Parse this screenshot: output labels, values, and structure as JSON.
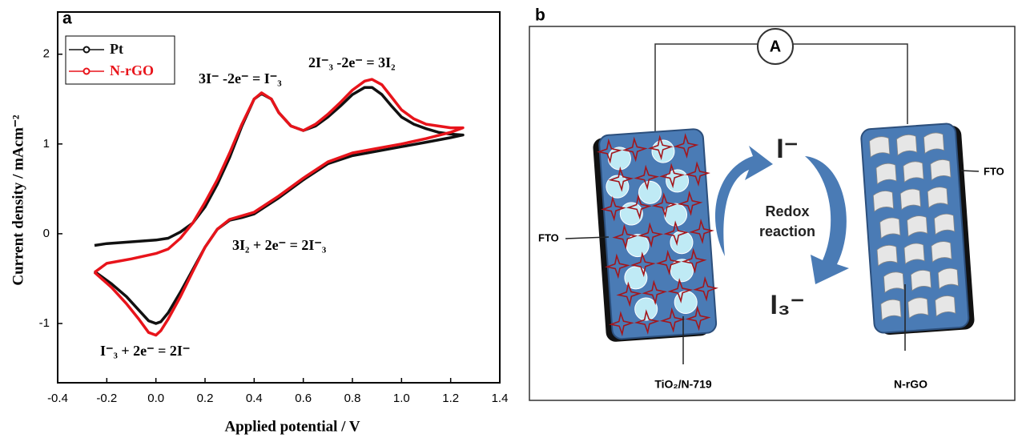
{
  "chart_data": {
    "type": "line",
    "panel_label": "a",
    "xlabel": "Applied potential / V",
    "ylabel": "Current density / mAcm⁻²",
    "xlim": [
      -0.4,
      1.4
    ],
    "ylim": [
      -1.66,
      2.47
    ],
    "xticks": [
      -0.4,
      -0.2,
      {
        "value": 0,
        "label": "0.0"
      },
      0.2,
      0.4,
      0.6,
      0.8,
      {
        "value": 1,
        "label": "1.0"
      },
      1.2,
      1.4
    ],
    "yticks": [
      -1,
      0,
      1,
      2
    ],
    "legend": "upper left",
    "annotations": [
      "3I⁻ -2e⁻ = I⁻₃",
      "2I⁻₃ -2e⁻ = 3I₂",
      "3I₂ + 2e⁻ = 2I⁻₃",
      "I⁻₃ + 2e⁻ = 2I⁻"
    ],
    "series": [
      {
        "name": "Pt",
        "color": "#111111",
        "x": [
          -0.25,
          -0.2,
          -0.1,
          0,
          0.05,
          0.1,
          0.15,
          0.2,
          0.25,
          0.3,
          0.35,
          0.4,
          0.43,
          0.47,
          0.5,
          0.55,
          0.6,
          0.65,
          0.7,
          0.75,
          0.8,
          0.85,
          0.88,
          0.92,
          0.96,
          1.0,
          1.05,
          1.1,
          1.15,
          1.2,
          1.25,
          1.2,
          1.1,
          1.0,
          0.9,
          0.8,
          0.7,
          0.6,
          0.5,
          0.4,
          0.35,
          0.3,
          0.25,
          0.2,
          0.15,
          0.1,
          0.05,
          0.02,
          0,
          -0.03,
          -0.07,
          -0.12,
          -0.18,
          -0.25
        ],
        "values": [
          -0.13,
          -0.11,
          -0.09,
          -0.07,
          -0.05,
          0.02,
          0.12,
          0.3,
          0.55,
          0.85,
          1.2,
          1.5,
          1.56,
          1.5,
          1.35,
          1.2,
          1.15,
          1.2,
          1.3,
          1.42,
          1.55,
          1.63,
          1.63,
          1.55,
          1.42,
          1.3,
          1.22,
          1.17,
          1.13,
          1.11,
          1.1,
          1.07,
          1.02,
          0.97,
          0.92,
          0.87,
          0.78,
          0.6,
          0.4,
          0.22,
          0.18,
          0.15,
          0.05,
          -0.15,
          -0.4,
          -0.65,
          -0.88,
          -0.98,
          -1.0,
          -0.97,
          -0.85,
          -0.7,
          -0.56,
          -0.42
        ]
      },
      {
        "name": "N-rGO",
        "color": "#e8141b",
        "x": [
          -0.25,
          -0.2,
          -0.1,
          0,
          0.05,
          0.1,
          0.15,
          0.2,
          0.25,
          0.3,
          0.35,
          0.4,
          0.43,
          0.47,
          0.5,
          0.55,
          0.6,
          0.65,
          0.7,
          0.75,
          0.8,
          0.85,
          0.88,
          0.92,
          0.96,
          1.0,
          1.05,
          1.1,
          1.15,
          1.2,
          1.25,
          1.2,
          1.1,
          1.0,
          0.9,
          0.8,
          0.7,
          0.6,
          0.5,
          0.4,
          0.35,
          0.3,
          0.25,
          0.2,
          0.15,
          0.1,
          0.05,
          0.02,
          0,
          -0.03,
          -0.07,
          -0.12,
          -0.18,
          -0.25
        ],
        "values": [
          -0.43,
          -0.33,
          -0.28,
          -0.22,
          -0.17,
          -0.05,
          0.12,
          0.35,
          0.6,
          0.9,
          1.22,
          1.5,
          1.57,
          1.5,
          1.35,
          1.2,
          1.15,
          1.22,
          1.33,
          1.46,
          1.6,
          1.7,
          1.72,
          1.66,
          1.52,
          1.38,
          1.28,
          1.22,
          1.2,
          1.18,
          1.18,
          1.13,
          1.06,
          1.0,
          0.95,
          0.9,
          0.8,
          0.62,
          0.42,
          0.24,
          0.2,
          0.16,
          0.05,
          -0.15,
          -0.42,
          -0.7,
          -0.95,
          -1.08,
          -1.13,
          -1.1,
          -0.95,
          -0.78,
          -0.6,
          -0.43
        ]
      }
    ]
  },
  "diagram": {
    "panel_label": "b",
    "ammeter": "A",
    "oxidized": "I⁻",
    "redox": [
      "Redox",
      "reaction"
    ],
    "reduced": "I₃⁻",
    "fto_left": "FTO",
    "fto_right": "FTO",
    "photoanode": "TiO₂/N-719",
    "counter": "N-rGO"
  }
}
